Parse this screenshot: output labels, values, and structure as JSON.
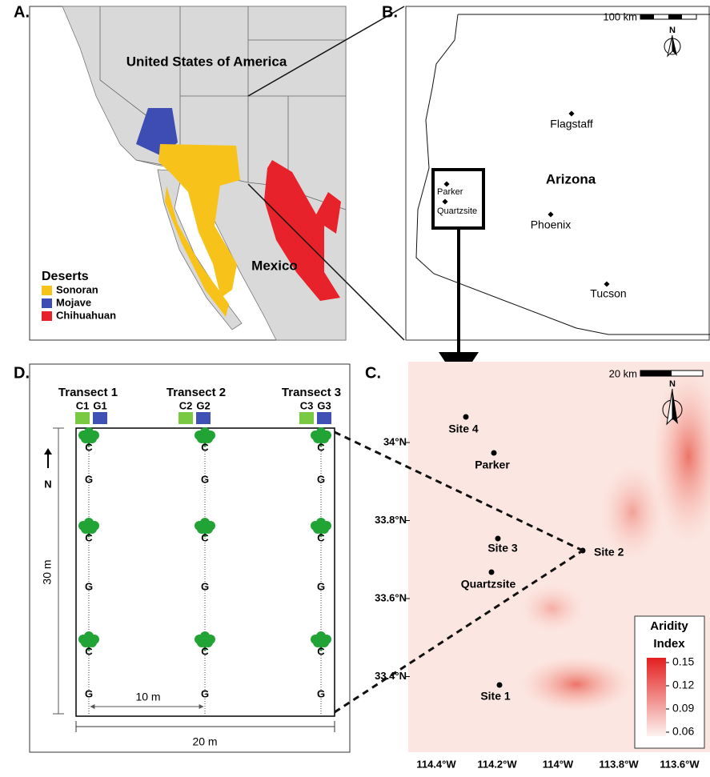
{
  "panel_a": {
    "label": "A.",
    "country_usa": "United States of America",
    "country_mexico": "Mexico",
    "legend_title": "Deserts",
    "legend": [
      {
        "name": "Sonoran",
        "color": "#f7c21a"
      },
      {
        "name": "Mojave",
        "color": "#3d4db3"
      },
      {
        "name": "Chihuahuan",
        "color": "#e8222a"
      }
    ]
  },
  "panel_b": {
    "label": "B.",
    "scale": "100 km",
    "north": "N",
    "state": "Arizona",
    "cities": [
      "Flagstaff",
      "Parker",
      "Quartzsite",
      "Phoenix",
      "Tucson"
    ]
  },
  "panel_c": {
    "label": "C.",
    "scale": "20 km",
    "north": "N",
    "sites": [
      "Site 4",
      "Parker",
      "Site 3",
      "Quartzsite",
      "Site 2",
      "Site 1"
    ],
    "lat_labels": [
      "34°N",
      "33.8°N",
      "33.6°N",
      "33.4°N"
    ],
    "lon_labels": [
      "114.4°W",
      "114.2°W",
      "114°W",
      "113.8°W",
      "113.6°W"
    ],
    "legend_title": [
      "Aridity",
      "Index"
    ],
    "legend_ticks": [
      "0.15",
      "0.12",
      "0.09",
      "0.06"
    ]
  },
  "panel_d": {
    "label": "D.",
    "north": "N",
    "length": "30 m",
    "spacing": "10 m",
    "width": "20 m",
    "transects": [
      {
        "name": "Transect 1",
        "codes": [
          "C1",
          "G1"
        ],
        "points": [
          "C",
          "G",
          "C",
          "G",
          "C",
          "G"
        ]
      },
      {
        "name": "Transect 2",
        "codes": [
          "C2",
          "G2"
        ],
        "points": [
          "C",
          "G",
          "C",
          "G",
          "C",
          "G"
        ]
      },
      {
        "name": "Transect 3",
        "codes": [
          "C3",
          "G3"
        ],
        "points": [
          "C",
          "G",
          "C",
          "G",
          "C",
          "G"
        ]
      }
    ]
  }
}
